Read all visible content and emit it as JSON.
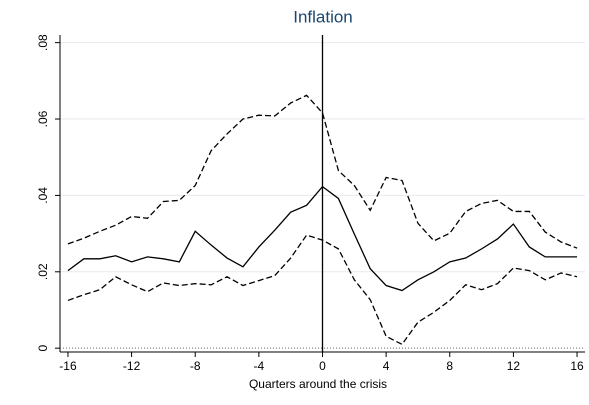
{
  "chart_data": {
    "type": "line",
    "title": "Inflation",
    "x_label": "Quarters around the crisis",
    "x": [
      -16,
      -15,
      -14,
      -13,
      -12,
      -11,
      -10,
      -9,
      -8,
      -7,
      -6,
      -5,
      -4,
      -3,
      -2,
      -1,
      0,
      1,
      2,
      3,
      4,
      5,
      6,
      7,
      8,
      9,
      10,
      11,
      12,
      13,
      14,
      15,
      16
    ],
    "series": [
      {
        "color": "#000000",
        "style": "solid",
        "values": [
          0.0203,
          0.0234,
          0.0234,
          0.0242,
          0.0226,
          0.0239,
          0.0234,
          0.0226,
          0.0306,
          0.027,
          0.0236,
          0.0213,
          0.0265,
          0.0309,
          0.0356,
          0.0374,
          0.0423,
          0.0392,
          0.0299,
          0.0208,
          0.0164,
          0.0151,
          0.0179,
          0.02,
          0.0226,
          0.0236,
          0.026,
          0.0286,
          0.0325,
          0.0265,
          0.0239,
          0.0239,
          0.0239
        ]
      },
      {
        "color": "#000000",
        "style": "dashed",
        "values": [
          0.0273,
          0.0288,
          0.0306,
          0.0322,
          0.0345,
          0.034,
          0.0384,
          0.0387,
          0.0426,
          0.0517,
          0.0561,
          0.06,
          0.061,
          0.0608,
          0.0642,
          0.0662,
          0.0616,
          0.0465,
          0.0426,
          0.0361,
          0.0447,
          0.0439,
          0.0327,
          0.0281,
          0.0301,
          0.0358,
          0.0379,
          0.0387,
          0.0358,
          0.0358,
          0.0304,
          0.0278,
          0.0262
        ]
      },
      {
        "color": "#000000",
        "style": "dashed",
        "values": [
          0.0125,
          0.014,
          0.0153,
          0.0187,
          0.0166,
          0.0148,
          0.0171,
          0.0164,
          0.0169,
          0.0166,
          0.0187,
          0.0164,
          0.0177,
          0.019,
          0.0236,
          0.0296,
          0.0283,
          0.026,
          0.0179,
          0.0127,
          0.0031,
          0.001,
          0.0068,
          0.0094,
          0.0125,
          0.0166,
          0.0153,
          0.0169,
          0.021,
          0.0203,
          0.0179,
          0.0197,
          0.0187
        ]
      }
    ],
    "xlim": [
      -16.5,
      16.5
    ],
    "xticks": [
      -16,
      -12,
      -8,
      -4,
      0,
      4,
      8,
      12,
      16
    ],
    "ylim": [
      -0.001,
      0.082
    ],
    "yticks": [
      0,
      {
        "value": 0.02,
        "label": ".02"
      },
      {
        "value": 0.04,
        "label": ".04"
      },
      {
        "value": 0.06,
        "label": ".06"
      },
      {
        "value": 0.08,
        "label": ".08"
      }
    ],
    "grid": true,
    "vline": 0,
    "hline": 0
  }
}
